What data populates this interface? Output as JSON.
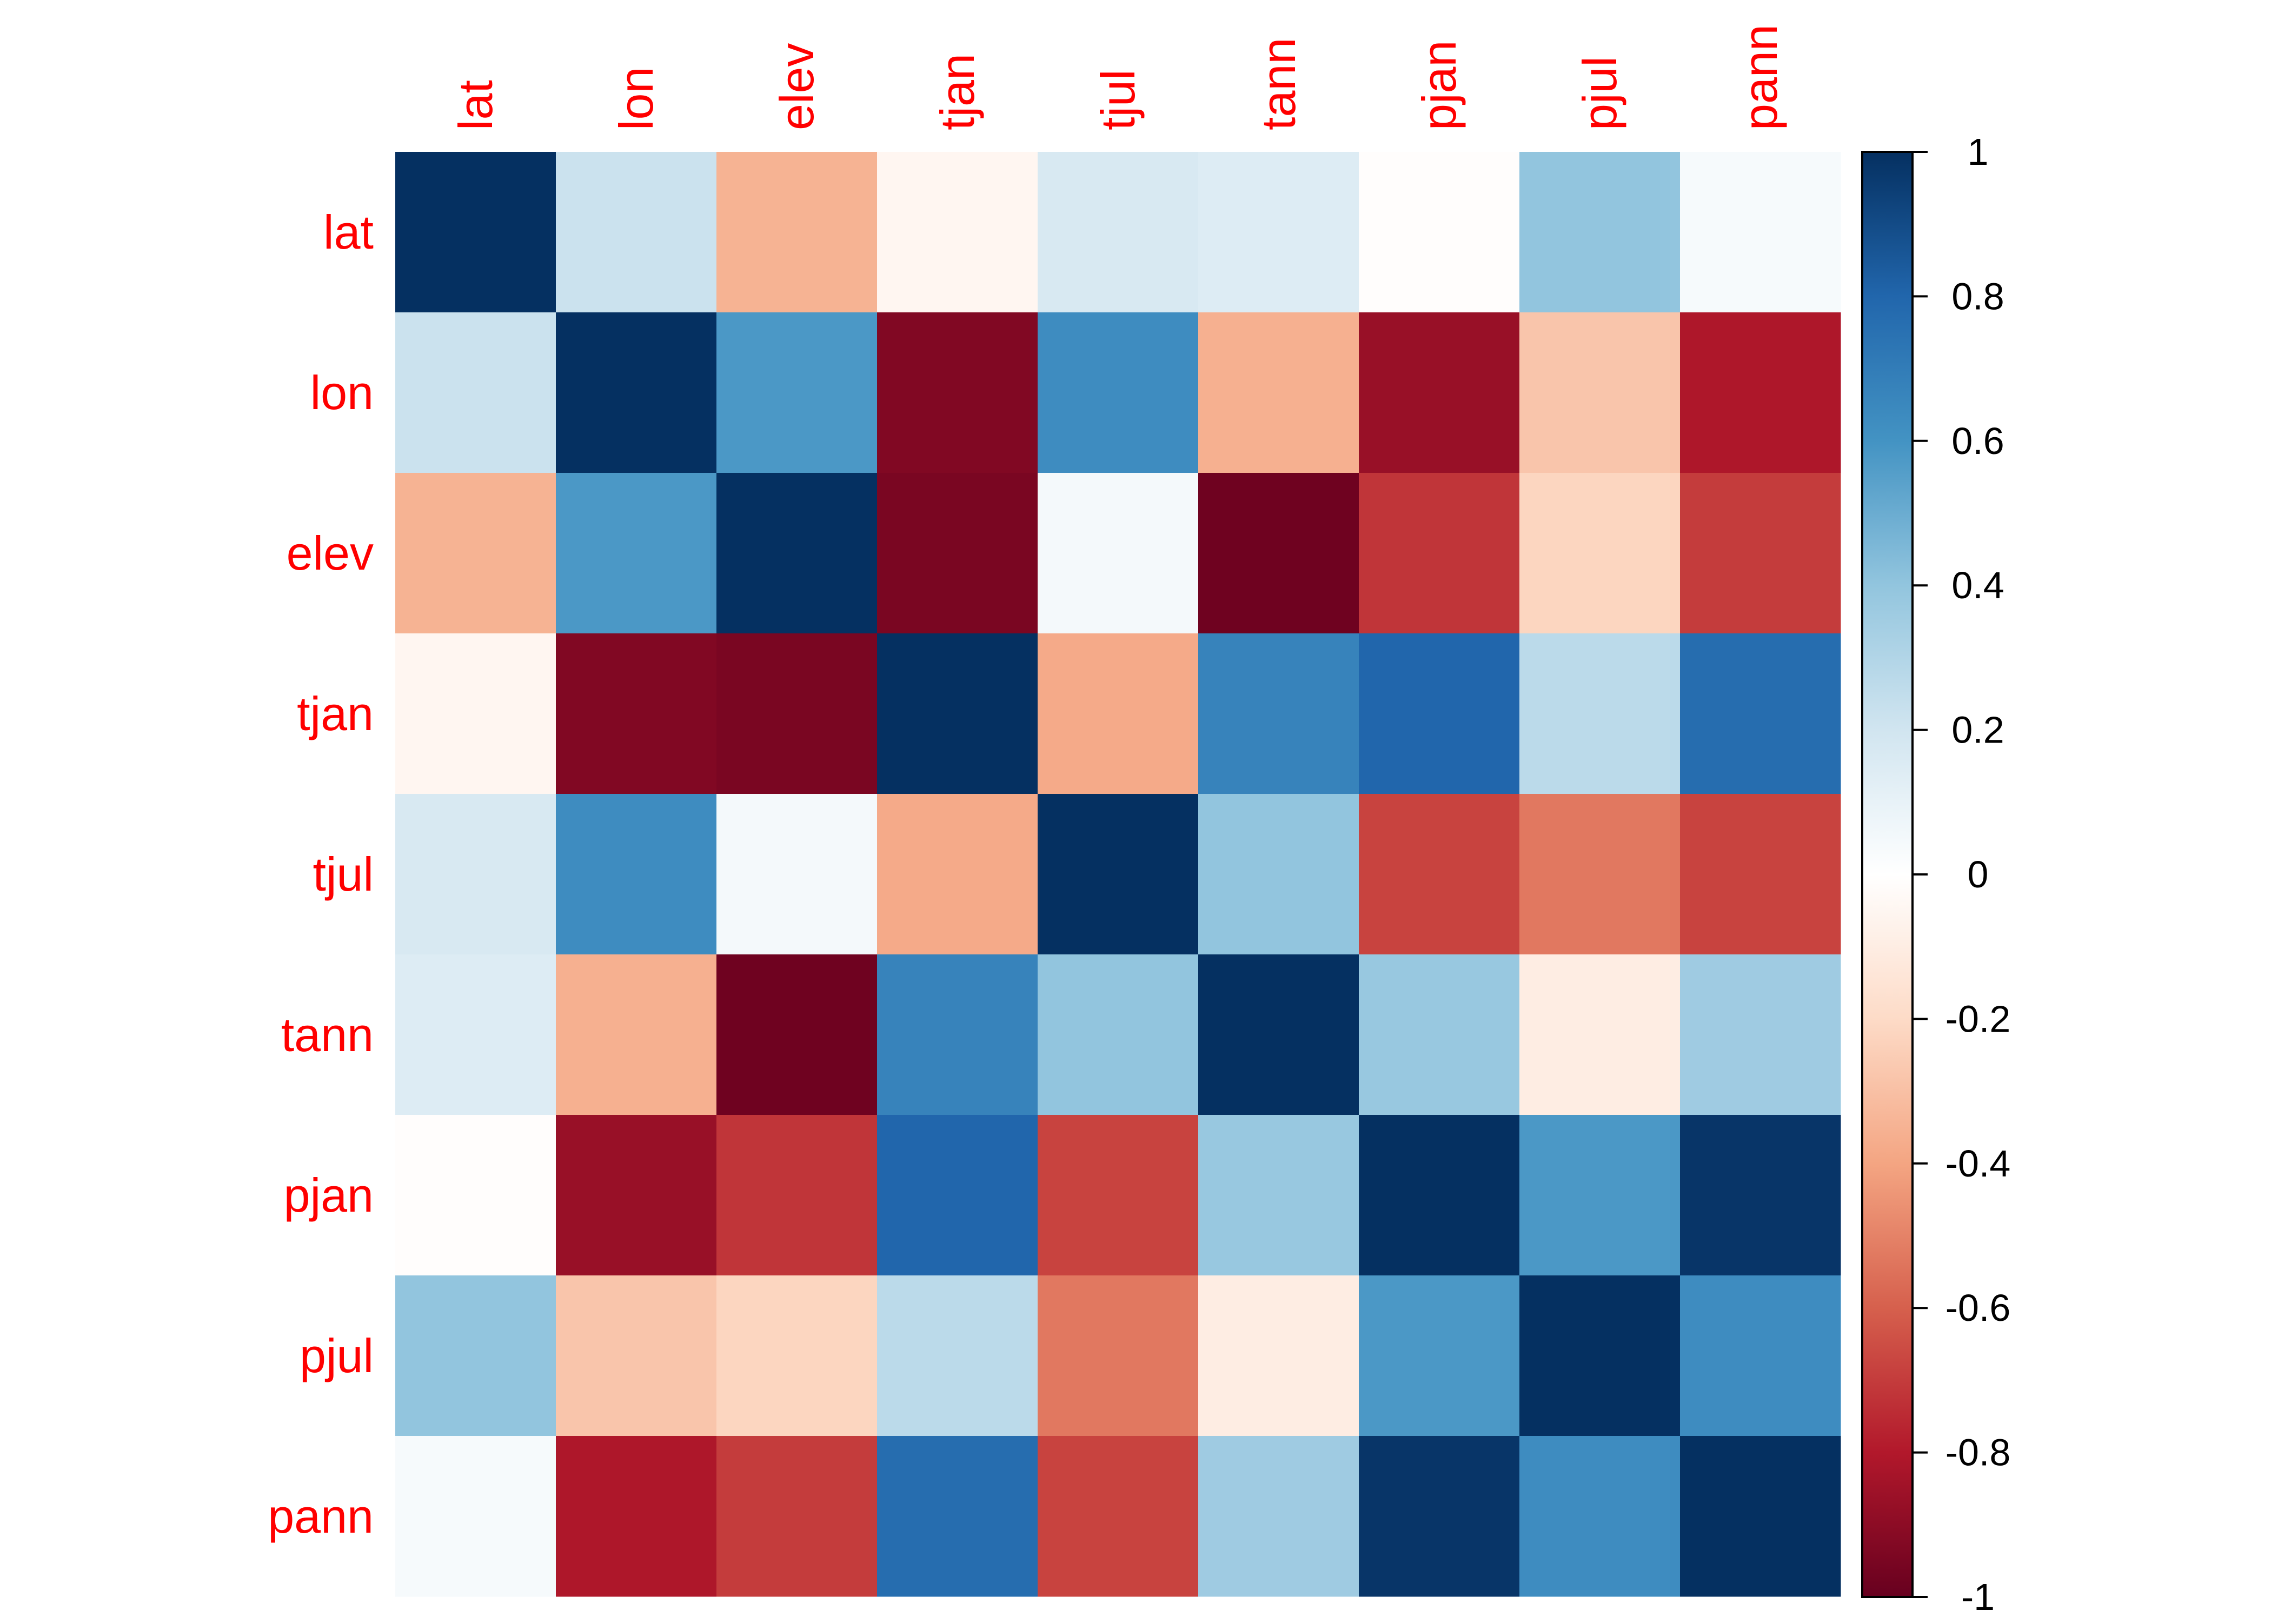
{
  "chart_data": {
    "type": "heatmap",
    "variables": [
      "lat",
      "lon",
      "elev",
      "tjan",
      "tjul",
      "tann",
      "pjan",
      "pjul",
      "pann"
    ],
    "matrix": [
      [
        1.0,
        0.22,
        -0.35,
        -0.05,
        0.17,
        0.15,
        -0.01,
        0.4,
        0.04
      ],
      [
        0.22,
        1.0,
        0.58,
        -0.93,
        0.63,
        -0.36,
        -0.87,
        -0.28,
        -0.81
      ],
      [
        -0.35,
        0.58,
        1.0,
        -0.95,
        0.05,
        -0.98,
        -0.72,
        -0.22,
        -0.7
      ],
      [
        -0.05,
        -0.93,
        -0.95,
        1.0,
        -0.38,
        0.67,
        0.8,
        0.27,
        0.77
      ],
      [
        0.17,
        0.63,
        0.05,
        -0.38,
        1.0,
        0.4,
        -0.68,
        -0.53,
        -0.68
      ],
      [
        0.15,
        -0.36,
        -0.98,
        0.67,
        0.4,
        1.0,
        0.38,
        -0.1,
        0.36
      ],
      [
        -0.01,
        -0.87,
        -0.72,
        0.8,
        -0.68,
        0.38,
        1.0,
        0.58,
        0.98
      ],
      [
        0.4,
        -0.28,
        -0.22,
        0.27,
        -0.53,
        -0.1,
        0.58,
        1.0,
        0.63
      ],
      [
        0.04,
        -0.81,
        -0.7,
        0.77,
        -0.68,
        0.36,
        0.98,
        0.63,
        1.0
      ]
    ],
    "color_scale": {
      "range": [
        -1,
        1
      ],
      "ticks": [
        "1",
        "0.8",
        "0.6",
        "0.4",
        "0.2",
        "0",
        "-0.2",
        "-0.4",
        "-0.6",
        "-0.8",
        "-1"
      ],
      "tick_values": [
        1,
        0.8,
        0.6,
        0.4,
        0.2,
        0,
        -0.2,
        -0.4,
        -0.6,
        -0.8,
        -1
      ],
      "palette": [
        "#67001F",
        "#B2182B",
        "#D6604D",
        "#F4A582",
        "#FDDBC7",
        "#FFFFFF",
        "#D1E5F0",
        "#92C5DE",
        "#4393C3",
        "#2166AC",
        "#053061"
      ]
    },
    "label_color": "#FF0000",
    "legend_position": "right"
  }
}
